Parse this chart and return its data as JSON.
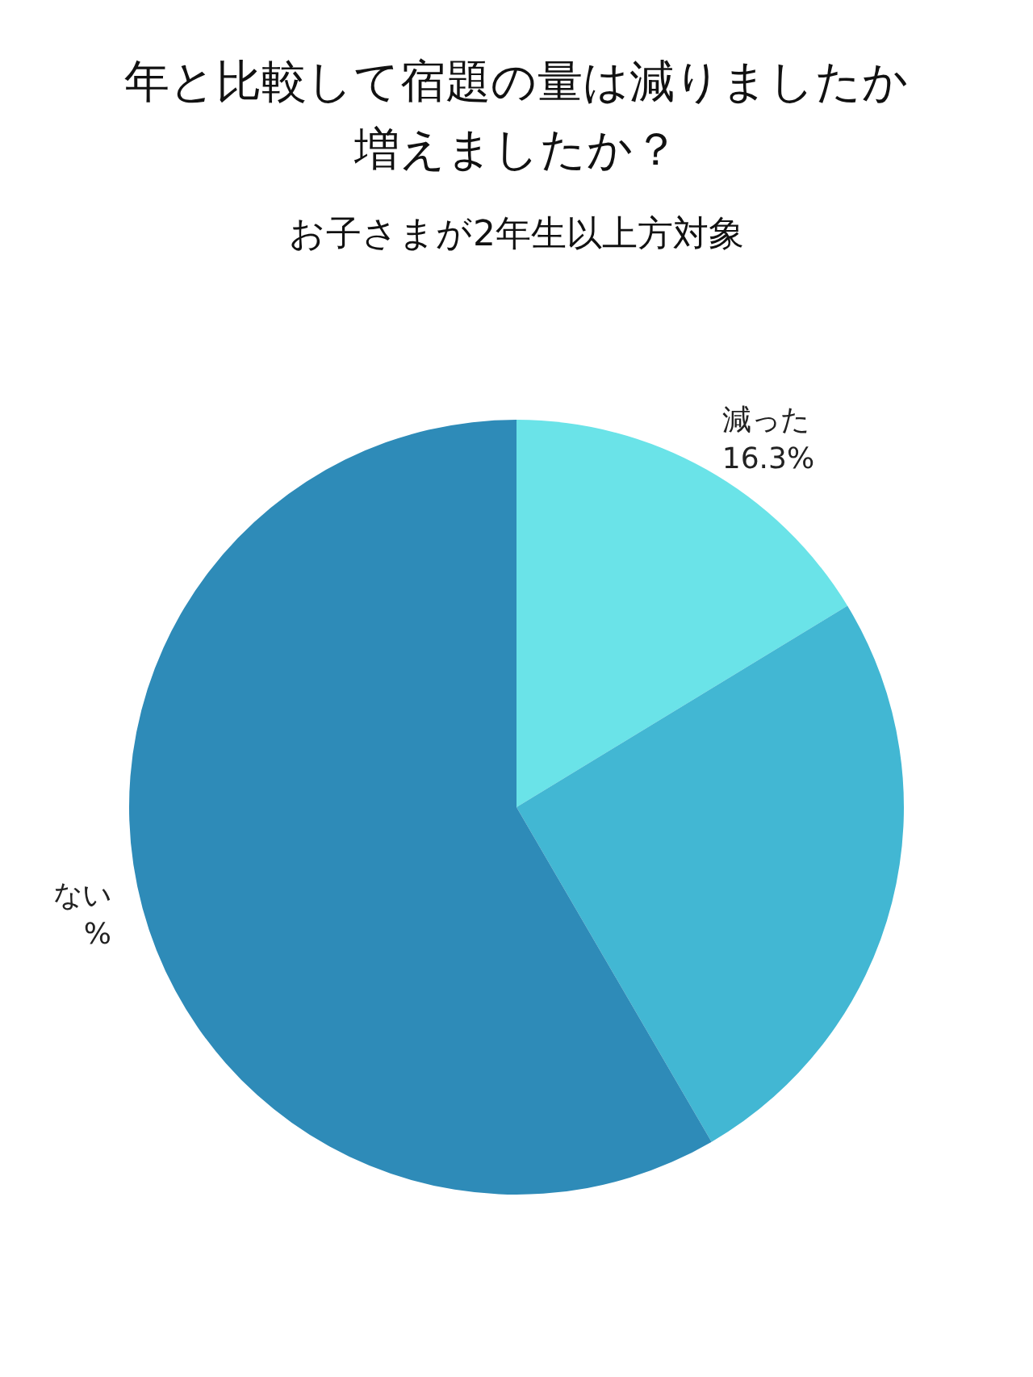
{
  "chart_data": {
    "type": "pie",
    "title": "年と比較して宿題の量は減りましたか増えましたか？",
    "subtitle": "お子さまが2年生以上方対象",
    "categories": [
      "減った",
      null,
      "ない"
    ],
    "values": [
      16.3,
      25.3,
      58.4
    ],
    "value_labels": [
      "16.3%",
      null,
      "%"
    ],
    "colors": [
      "#6ae3e8",
      "#42b7d3",
      "#2e8bb8"
    ],
    "legend": false
  }
}
